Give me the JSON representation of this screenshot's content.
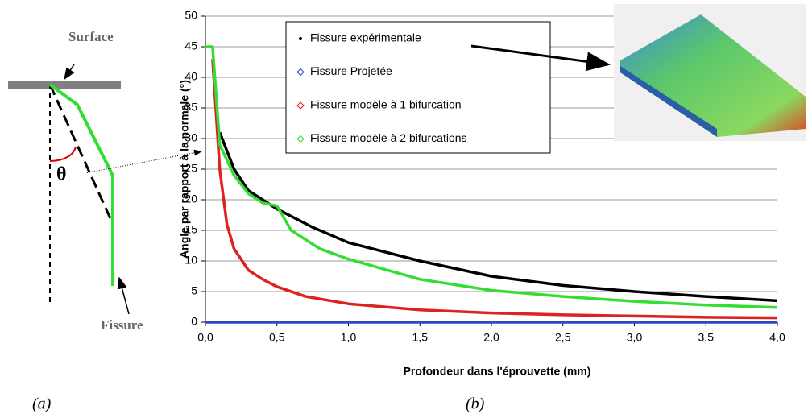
{
  "chart_data": {
    "type": "line",
    "x_label": "Profondeur dans l'éprouvette (mm)",
    "y_label": "Angle par rapport à la normale (°)",
    "xlim": [
      0,
      4
    ],
    "ylim": [
      0,
      50
    ],
    "xticks": [
      {
        "value": 0,
        "label": "0,0"
      },
      {
        "value": 0.5,
        "label": "0,5"
      },
      {
        "value": 1,
        "label": "1,0"
      },
      {
        "value": 1.5,
        "label": "1,5"
      },
      {
        "value": 2,
        "label": "2,0"
      },
      {
        "value": 2.5,
        "label": "2,5"
      },
      {
        "value": 3,
        "label": "3,0"
      },
      {
        "value": 3.5,
        "label": "3,5"
      },
      {
        "value": 4,
        "label": "4,0"
      }
    ],
    "yticks": [
      0,
      5,
      10,
      15,
      20,
      25,
      30,
      35,
      40,
      45,
      50
    ],
    "grid": true,
    "series": [
      {
        "name": "Fissure expérimentale",
        "color": "#000000",
        "x": [
          0.1,
          0.2,
          0.3,
          0.4,
          0.5,
          0.75,
          1.0,
          1.5,
          2.0,
          2.5,
          3.0,
          3.5,
          4.0
        ],
        "values": [
          31,
          25,
          21.5,
          20,
          18.5,
          15.5,
          13,
          10,
          7.5,
          6,
          5,
          4.2,
          3.5
        ]
      },
      {
        "name": "Fissure Projetée",
        "color": "#3344cc",
        "x": [
          0,
          1,
          2,
          3,
          4
        ],
        "values": [
          0,
          0,
          0,
          0,
          0
        ]
      },
      {
        "name": "Fissure modèle à 1 bifurcation",
        "color": "#dd2222",
        "x": [
          0.05,
          0.1,
          0.15,
          0.2,
          0.3,
          0.4,
          0.5,
          0.7,
          1.0,
          1.5,
          2.0,
          2.5,
          3.0,
          3.5,
          4.0
        ],
        "values": [
          43,
          25,
          16,
          12,
          8.5,
          7,
          5.8,
          4.2,
          3,
          2,
          1.5,
          1.2,
          1,
          0.8,
          0.7
        ]
      },
      {
        "name": "Fissure modèle à 2 bifurcations",
        "color": "#33dd33",
        "x": [
          0,
          0.05,
          0.1,
          0.2,
          0.3,
          0.4,
          0.5,
          0.6,
          0.8,
          1.0,
          1.5,
          2.0,
          2.5,
          3.0,
          3.5,
          4.0
        ],
        "values": [
          45,
          45,
          29,
          24,
          21,
          19.5,
          19,
          15,
          12,
          10.3,
          7,
          5.2,
          4.2,
          3.4,
          2.8,
          2.4
        ]
      }
    ]
  },
  "diagram": {
    "surface_label": "Surface",
    "angle_label": "θ",
    "crack_label": "Fissure"
  },
  "captions": [
    "(a)",
    "(b)"
  ]
}
